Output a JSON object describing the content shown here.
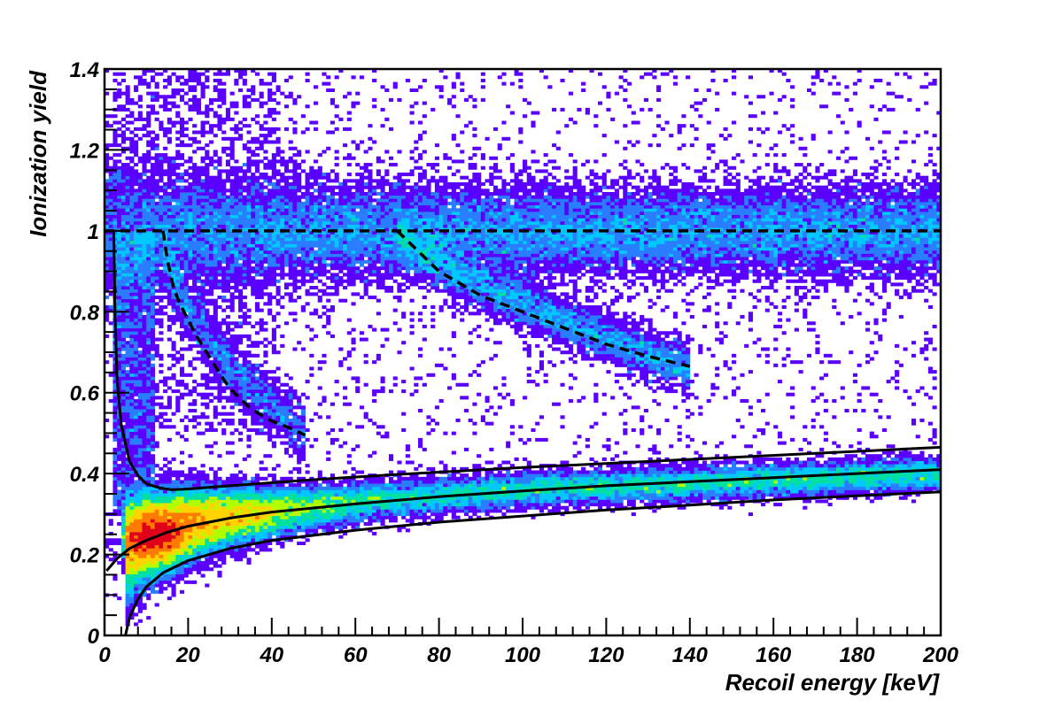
{
  "chart_data": {
    "type": "heatmap",
    "title": "",
    "xlabel": "Recoil energy [keV]",
    "ylabel": "Ionization yield",
    "xlim": [
      0,
      200
    ],
    "ylim": [
      0,
      1.4
    ],
    "x_ticks": [
      0,
      20,
      40,
      60,
      80,
      100,
      120,
      140,
      160,
      180,
      200
    ],
    "y_ticks": [
      0,
      0.2,
      0.4,
      0.6,
      0.8,
      1,
      1.2,
      1.4
    ],
    "x_tick_labels": [
      "0",
      "20",
      "40",
      "60",
      "80",
      "100",
      "120",
      "140",
      "160",
      "180",
      "200"
    ],
    "y_tick_labels": [
      "0",
      "0.2",
      "0.4",
      "0.6",
      "0.8",
      "1",
      "1.2",
      "1.4"
    ],
    "grid": false,
    "legend": "none",
    "colormap": [
      "#5a00ff",
      "#2a7dff",
      "#00c8ff",
      "#00e0a0",
      "#b0ff00",
      "#ffd400",
      "#ff7a00",
      "#e0001b"
    ],
    "populations": [
      {
        "description": "gamma band",
        "x_range": [
          0,
          200
        ],
        "y_center": 1.0,
        "y_width": 0.07
      },
      {
        "description": "nuclear recoil band",
        "x_range": [
          4,
          200
        ],
        "y_center_at": [
          [
            6,
            0.22
          ],
          [
            20,
            0.28
          ],
          [
            60,
            0.33
          ],
          [
            100,
            0.36
          ],
          [
            200,
            0.4
          ]
        ],
        "peak_x": 12,
        "peak_y": 0.25
      },
      {
        "description": "surface/inelastic branch",
        "x_range": [
          70,
          140
        ],
        "from_y": 1.0,
        "to_y": 0.66
      },
      {
        "description": "low-energy branch",
        "x_range": [
          12,
          48
        ],
        "from_y": 1.0,
        "to_y": 0.5
      }
    ],
    "series": [
      {
        "style": "solid",
        "points": [
          [
            0.5,
            0.16
          ],
          [
            3,
            0.19
          ],
          [
            6,
            0.215
          ],
          [
            10,
            0.235
          ],
          [
            15,
            0.255
          ],
          [
            20,
            0.27
          ],
          [
            30,
            0.29
          ],
          [
            40,
            0.305
          ],
          [
            60,
            0.325
          ],
          [
            80,
            0.343
          ],
          [
            100,
            0.357
          ],
          [
            120,
            0.37
          ],
          [
            140,
            0.38
          ],
          [
            160,
            0.39
          ],
          [
            180,
            0.4
          ],
          [
            200,
            0.41
          ]
        ]
      },
      {
        "style": "solid",
        "points": [
          [
            2.2,
            1.0
          ],
          [
            2.5,
            0.8
          ],
          [
            3,
            0.63
          ],
          [
            4,
            0.52
          ],
          [
            6,
            0.43
          ],
          [
            8,
            0.395
          ],
          [
            10,
            0.375
          ],
          [
            13,
            0.365
          ],
          [
            16,
            0.36
          ],
          [
            20,
            0.362
          ],
          [
            30,
            0.37
          ],
          [
            50,
            0.385
          ],
          [
            70,
            0.398
          ],
          [
            100,
            0.415
          ],
          [
            140,
            0.435
          ],
          [
            170,
            0.45
          ],
          [
            200,
            0.465
          ]
        ]
      },
      {
        "style": "solid",
        "points": [
          [
            5,
            0.0
          ],
          [
            6,
            0.045
          ],
          [
            8,
            0.09
          ],
          [
            10,
            0.12
          ],
          [
            14,
            0.155
          ],
          [
            20,
            0.185
          ],
          [
            30,
            0.215
          ],
          [
            40,
            0.235
          ],
          [
            60,
            0.26
          ],
          [
            80,
            0.28
          ],
          [
            100,
            0.295
          ],
          [
            120,
            0.31
          ],
          [
            140,
            0.322
          ],
          [
            160,
            0.335
          ],
          [
            180,
            0.345
          ],
          [
            200,
            0.355
          ]
        ]
      },
      {
        "style": "dashed",
        "points": [
          [
            0,
            1.0
          ],
          [
            200,
            1.0
          ]
        ]
      },
      {
        "style": "dashed",
        "points": [
          [
            14,
            1.0
          ],
          [
            15,
            0.93
          ],
          [
            16.5,
            0.86
          ],
          [
            18,
            0.82
          ],
          [
            20,
            0.78
          ],
          [
            22,
            0.74
          ],
          [
            25,
            0.69
          ],
          [
            28,
            0.64
          ],
          [
            30,
            0.61
          ],
          [
            35,
            0.56
          ],
          [
            40,
            0.53
          ],
          [
            45,
            0.51
          ],
          [
            48,
            0.495
          ]
        ]
      },
      {
        "style": "dashed",
        "points": [
          [
            70,
            1.0
          ],
          [
            73,
            0.97
          ],
          [
            76,
            0.94
          ],
          [
            80,
            0.9
          ],
          [
            85,
            0.87
          ],
          [
            90,
            0.84
          ],
          [
            100,
            0.8
          ],
          [
            110,
            0.76
          ],
          [
            120,
            0.72
          ],
          [
            130,
            0.69
          ],
          [
            140,
            0.665
          ]
        ]
      }
    ]
  }
}
